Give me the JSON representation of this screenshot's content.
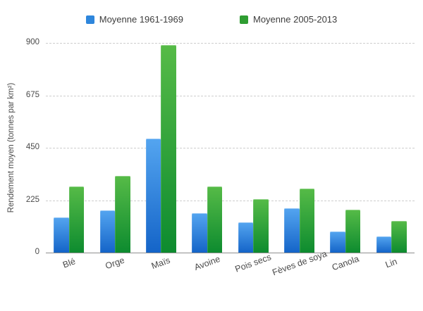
{
  "chart_data": {
    "type": "bar",
    "title": "",
    "categories": [
      "Blé",
      "Orge",
      "Maïs",
      "Avoine",
      "Pois secs",
      "Fèves de soya",
      "Canola",
      "Lin"
    ],
    "series": [
      {
        "name": "Moyenne 1961-1969",
        "values": [
          150,
          180,
          490,
          170,
          130,
          190,
          90,
          70
        ],
        "color_top": "#54a5f0",
        "color_bottom": "#1464c8",
        "legend_color": "#2e86dc"
      },
      {
        "name": "Moyenne 2005-2013",
        "values": [
          285,
          330,
          890,
          285,
          230,
          275,
          185,
          135
        ],
        "color_top": "#56bb47",
        "color_bottom": "#0d8b2f",
        "legend_color": "#2f9d32"
      }
    ],
    "xlabel": "",
    "ylabel": "Rendement moyen (tonnes par km²)",
    "yticks": [
      0,
      225,
      450,
      675,
      900
    ],
    "ylim": [
      0,
      900
    ],
    "grid": "horizontal-dashed",
    "legend_position": "top-center",
    "background_color": "#ffffff",
    "axis_line_color": "#8f8f8f",
    "gridline_color": "#cecece",
    "text_color": "#4a4a4a"
  }
}
